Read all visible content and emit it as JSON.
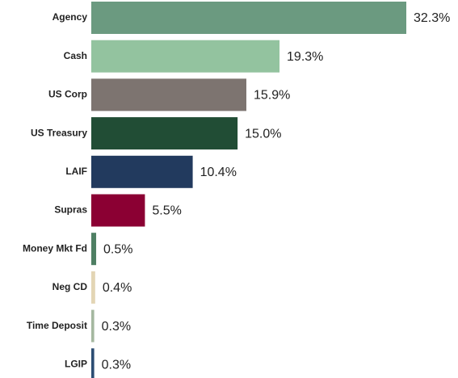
{
  "chart_data": {
    "type": "bar",
    "orientation": "horizontal",
    "categories": [
      "Agency",
      "Cash",
      "US Corp",
      "US Treasury",
      "LAIF",
      "Supras",
      "Money Mkt Fd",
      "Neg CD",
      "Time Deposit",
      "LGIP"
    ],
    "values": [
      32.3,
      19.3,
      15.9,
      15.0,
      10.4,
      5.5,
      0.5,
      0.4,
      0.3,
      0.3
    ],
    "value_labels": [
      "32.3%",
      "19.3%",
      "15.9%",
      "15.0%",
      "10.4%",
      "5.5%",
      "0.5%",
      "0.4%",
      "0.3%",
      "0.3%"
    ],
    "colors": [
      "#6b9a80",
      "#93c39f",
      "#7d7470",
      "#214d35",
      "#223a5e",
      "#8b0033",
      "#4e7f63",
      "#e3d5b5",
      "#a5b8a0",
      "#2c4d73"
    ]
  }
}
